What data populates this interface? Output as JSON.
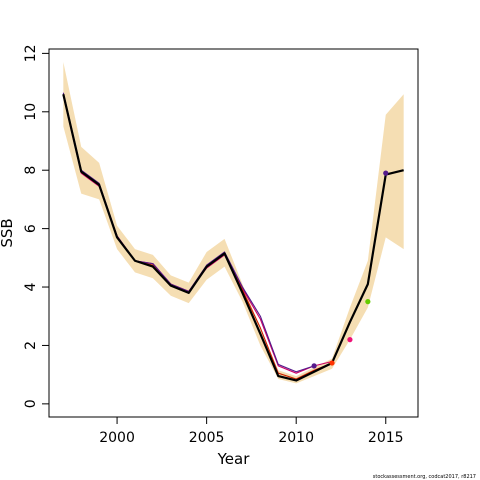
{
  "chart_data": {
    "type": "line",
    "xlabel": "Year",
    "ylabel": "SSB",
    "xlim": [
      1996.2,
      2016.8
    ],
    "ylim": [
      -0.45,
      12.15
    ],
    "x_ticks": [
      2000,
      2005,
      2010,
      2015
    ],
    "y_ticks": [
      0,
      2,
      4,
      6,
      8,
      10,
      12
    ],
    "years": [
      1997,
      1998,
      1999,
      2000,
      2001,
      2002,
      2003,
      2004,
      2005,
      2006,
      2007,
      2008,
      2009,
      2010,
      2011,
      2012,
      2013,
      2014,
      2015,
      2016
    ],
    "confidence_band": {
      "lower": [
        9.5,
        7.2,
        7.0,
        5.3,
        4.5,
        4.3,
        3.7,
        3.45,
        4.25,
        4.7,
        3.5,
        2.0,
        0.85,
        0.7,
        0.95,
        1.2,
        2.2,
        3.3,
        5.7,
        5.3
      ],
      "upper": [
        11.7,
        8.8,
        8.25,
        6.1,
        5.3,
        5.1,
        4.4,
        4.15,
        5.2,
        5.65,
        4.1,
        2.6,
        1.15,
        0.95,
        1.25,
        1.55,
        3.3,
        4.9,
        9.9,
        10.6
      ],
      "color": "#f5deb3"
    },
    "series": [
      {
        "color": "#000000",
        "x": [
          1997,
          1998,
          1999,
          2000,
          2001,
          2002,
          2003,
          2004,
          2005,
          2006,
          2007,
          2008,
          2009,
          2010,
          2011,
          2012,
          2013,
          2014,
          2015,
          2016
        ],
        "values": [
          10.6,
          7.95,
          7.5,
          5.7,
          4.9,
          4.7,
          4.05,
          3.8,
          4.7,
          5.15,
          3.8,
          2.4,
          0.95,
          0.8,
          1.1,
          1.4,
          2.8,
          4.1,
          7.85,
          8.0
        ]
      },
      {
        "color": "#cc0066",
        "x": [
          1997,
          1998,
          1999,
          2000,
          2001,
          2002,
          2003,
          2004,
          2005,
          2006,
          2007,
          2008,
          2009,
          2010,
          2011,
          2012
        ],
        "values": [
          10.55,
          7.9,
          7.45,
          5.75,
          4.9,
          4.8,
          4.1,
          3.85,
          4.65,
          5.1,
          3.95,
          2.9,
          1.3,
          1.05,
          1.3,
          1.45
        ]
      },
      {
        "color": "#cc2200",
        "x": [
          1997,
          1998,
          1999,
          2000,
          2001,
          2002,
          2003,
          2004,
          2005,
          2006,
          2007,
          2008,
          2009,
          2010,
          2011,
          2012
        ],
        "values": [
          10.6,
          7.95,
          7.5,
          5.75,
          4.9,
          4.75,
          4.1,
          3.85,
          4.7,
          5.15,
          3.9,
          2.6,
          1.05,
          0.85,
          1.15,
          1.4
        ]
      },
      {
        "color": "#551a8b",
        "x": [
          1997,
          1998,
          1999,
          2000,
          2001,
          2002,
          2003,
          2004,
          2005,
          2006,
          2007,
          2008,
          2009,
          2010,
          2011
        ],
        "values": [
          10.65,
          8.0,
          7.55,
          5.75,
          4.9,
          4.8,
          4.1,
          3.85,
          4.75,
          5.2,
          4.0,
          3.0,
          1.35,
          1.1,
          1.3
        ]
      }
    ],
    "terminal_points": [
      {
        "x": 2011,
        "y": 1.3,
        "color": "#551a8b"
      },
      {
        "x": 2012,
        "y": 1.4,
        "color": "#ff3300"
      },
      {
        "x": 2013,
        "y": 2.2,
        "color": "#ee1177"
      },
      {
        "x": 2014,
        "y": 3.5,
        "color": "#66cc00"
      },
      {
        "x": 2015,
        "y": 7.9,
        "color": "#551a8b"
      }
    ],
    "grid": false,
    "legend": "none"
  },
  "credit": "stockassessment.org, codcat2017, r8217"
}
